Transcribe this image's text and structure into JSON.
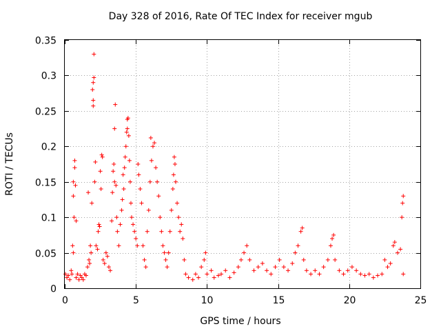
{
  "chart_data": {
    "type": "scatter",
    "title": "Day 328 of 2016, Rate Of TEC Index for receiver mgub",
    "xlabel": "GPS time / hours",
    "ylabel": "ROTI / TECUs",
    "xlim": [
      0,
      25
    ],
    "ylim": [
      0,
      0.35
    ],
    "x_ticks": [
      0,
      5,
      10,
      15,
      20,
      25
    ],
    "x_tick_labels": [
      "0",
      "5",
      "10",
      "15",
      "20",
      "25"
    ],
    "y_ticks": [
      0,
      0.05,
      0.1,
      0.15,
      0.2,
      0.25,
      0.3,
      0.35
    ],
    "y_tick_labels": [
      "0",
      "0.05",
      "0.1",
      "0.15",
      "0.2",
      "0.25",
      "0.3",
      "0.35"
    ],
    "grid": true,
    "marker": "plus",
    "color": "#ff0000",
    "series": [
      {
        "points": [
          [
            0.05,
            0.02
          ],
          [
            0.15,
            0.015
          ],
          [
            0.25,
            0.018
          ],
          [
            0.35,
            0.012
          ],
          [
            0.45,
            0.025
          ],
          [
            0.5,
            0.02
          ],
          [
            0.55,
            0.06
          ],
          [
            0.6,
            0.05
          ],
          [
            0.6,
            0.15
          ],
          [
            0.6,
            0.13
          ],
          [
            0.65,
            0.1
          ],
          [
            0.7,
            0.18
          ],
          [
            0.7,
            0.17
          ],
          [
            0.75,
            0.145
          ],
          [
            0.8,
            0.095
          ],
          [
            0.8,
            0.015
          ],
          [
            0.9,
            0.02
          ],
          [
            1.0,
            0.012
          ],
          [
            1.1,
            0.018
          ],
          [
            1.2,
            0.015
          ],
          [
            1.3,
            0.012
          ],
          [
            1.4,
            0.02
          ],
          [
            1.5,
            0.018
          ],
          [
            1.6,
            0.03
          ],
          [
            1.65,
            0.135
          ],
          [
            1.7,
            0.04
          ],
          [
            1.75,
            0.035
          ],
          [
            1.8,
            0.06
          ],
          [
            1.85,
            0.05
          ],
          [
            1.9,
            0.12
          ],
          [
            1.95,
            0.28
          ],
          [
            2.0,
            0.29
          ],
          [
            2.0,
            0.265
          ],
          [
            2.0,
            0.257
          ],
          [
            2.05,
            0.33
          ],
          [
            2.05,
            0.297
          ],
          [
            2.1,
            0.15
          ],
          [
            2.15,
            0.178
          ],
          [
            2.2,
            0.06
          ],
          [
            2.3,
            0.055
          ],
          [
            2.35,
            0.08
          ],
          [
            2.4,
            0.09
          ],
          [
            2.45,
            0.087
          ],
          [
            2.5,
            0.165
          ],
          [
            2.55,
            0.14
          ],
          [
            2.6,
            0.188
          ],
          [
            2.65,
            0.185
          ],
          [
            2.7,
            0.04
          ],
          [
            2.8,
            0.035
          ],
          [
            2.9,
            0.05
          ],
          [
            3.0,
            0.045
          ],
          [
            3.1,
            0.03
          ],
          [
            3.2,
            0.025
          ],
          [
            3.3,
            0.095
          ],
          [
            3.35,
            0.135
          ],
          [
            3.4,
            0.165
          ],
          [
            3.45,
            0.175
          ],
          [
            3.5,
            0.15
          ],
          [
            3.5,
            0.225
          ],
          [
            3.55,
            0.259
          ],
          [
            3.6,
            0.145
          ],
          [
            3.65,
            0.1
          ],
          [
            3.7,
            0.08
          ],
          [
            3.8,
            0.06
          ],
          [
            3.9,
            0.09
          ],
          [
            4.0,
            0.11
          ],
          [
            4.05,
            0.125
          ],
          [
            4.1,
            0.16
          ],
          [
            4.15,
            0.14
          ],
          [
            4.2,
            0.17
          ],
          [
            4.25,
            0.185
          ],
          [
            4.3,
            0.2
          ],
          [
            4.35,
            0.22
          ],
          [
            4.4,
            0.225
          ],
          [
            4.4,
            0.238
          ],
          [
            4.45,
            0.24
          ],
          [
            4.5,
            0.215
          ],
          [
            4.55,
            0.18
          ],
          [
            4.6,
            0.15
          ],
          [
            4.65,
            0.12
          ],
          [
            4.7,
            0.1
          ],
          [
            4.8,
            0.09
          ],
          [
            4.9,
            0.08
          ],
          [
            5.0,
            0.07
          ],
          [
            5.1,
            0.06
          ],
          [
            5.15,
            0.175
          ],
          [
            5.2,
            0.16
          ],
          [
            5.3,
            0.14
          ],
          [
            5.4,
            0.12
          ],
          [
            5.5,
            0.06
          ],
          [
            5.6,
            0.04
          ],
          [
            5.7,
            0.03
          ],
          [
            5.8,
            0.08
          ],
          [
            5.9,
            0.11
          ],
          [
            6.0,
            0.15
          ],
          [
            6.05,
            0.212
          ],
          [
            6.1,
            0.18
          ],
          [
            6.2,
            0.2
          ],
          [
            6.3,
            0.205
          ],
          [
            6.4,
            0.17
          ],
          [
            6.5,
            0.15
          ],
          [
            6.6,
            0.13
          ],
          [
            6.7,
            0.1
          ],
          [
            6.8,
            0.08
          ],
          [
            6.9,
            0.06
          ],
          [
            7.0,
            0.05
          ],
          [
            7.1,
            0.04
          ],
          [
            7.2,
            0.03
          ],
          [
            7.3,
            0.05
          ],
          [
            7.4,
            0.08
          ],
          [
            7.5,
            0.11
          ],
          [
            7.6,
            0.14
          ],
          [
            7.65,
            0.16
          ],
          [
            7.7,
            0.185
          ],
          [
            7.75,
            0.175
          ],
          [
            7.8,
            0.15
          ],
          [
            7.9,
            0.12
          ],
          [
            8.0,
            0.1
          ],
          [
            8.1,
            0.08
          ],
          [
            8.2,
            0.09
          ],
          [
            8.3,
            0.07
          ],
          [
            8.4,
            0.04
          ],
          [
            8.5,
            0.02
          ],
          [
            8.7,
            0.015
          ],
          [
            9.0,
            0.012
          ],
          [
            9.2,
            0.02
          ],
          [
            9.4,
            0.015
          ],
          [
            9.6,
            0.03
          ],
          [
            9.8,
            0.04
          ],
          [
            9.9,
            0.05
          ],
          [
            10.0,
            0.02
          ],
          [
            10.3,
            0.025
          ],
          [
            10.5,
            0.015
          ],
          [
            10.8,
            0.018
          ],
          [
            11.0,
            0.02
          ],
          [
            11.3,
            0.025
          ],
          [
            11.6,
            0.015
          ],
          [
            11.9,
            0.022
          ],
          [
            12.2,
            0.03
          ],
          [
            12.4,
            0.04
          ],
          [
            12.6,
            0.05
          ],
          [
            12.8,
            0.06
          ],
          [
            13.0,
            0.04
          ],
          [
            13.3,
            0.025
          ],
          [
            13.6,
            0.03
          ],
          [
            13.9,
            0.035
          ],
          [
            14.2,
            0.025
          ],
          [
            14.5,
            0.02
          ],
          [
            14.8,
            0.03
          ],
          [
            15.1,
            0.04
          ],
          [
            15.4,
            0.03
          ],
          [
            15.7,
            0.025
          ],
          [
            16.0,
            0.035
          ],
          [
            16.2,
            0.05
          ],
          [
            16.4,
            0.06
          ],
          [
            16.6,
            0.08
          ],
          [
            16.7,
            0.085
          ],
          [
            16.8,
            0.04
          ],
          [
            17.0,
            0.025
          ],
          [
            17.3,
            0.02
          ],
          [
            17.6,
            0.025
          ],
          [
            17.9,
            0.02
          ],
          [
            18.2,
            0.03
          ],
          [
            18.5,
            0.04
          ],
          [
            18.7,
            0.06
          ],
          [
            18.8,
            0.07
          ],
          [
            18.9,
            0.075
          ],
          [
            19.0,
            0.04
          ],
          [
            19.3,
            0.025
          ],
          [
            19.6,
            0.02
          ],
          [
            19.9,
            0.025
          ],
          [
            20.2,
            0.03
          ],
          [
            20.5,
            0.025
          ],
          [
            20.8,
            0.02
          ],
          [
            21.1,
            0.018
          ],
          [
            21.4,
            0.02
          ],
          [
            21.7,
            0.015
          ],
          [
            22.0,
            0.018
          ],
          [
            22.3,
            0.02
          ],
          [
            22.5,
            0.04
          ],
          [
            22.7,
            0.03
          ],
          [
            22.9,
            0.035
          ],
          [
            23.1,
            0.06
          ],
          [
            23.2,
            0.065
          ],
          [
            23.4,
            0.05
          ],
          [
            23.6,
            0.055
          ],
          [
            23.7,
            0.1
          ],
          [
            23.75,
            0.12
          ],
          [
            23.8,
            0.13
          ],
          [
            23.8,
            0.02
          ]
        ]
      }
    ]
  }
}
